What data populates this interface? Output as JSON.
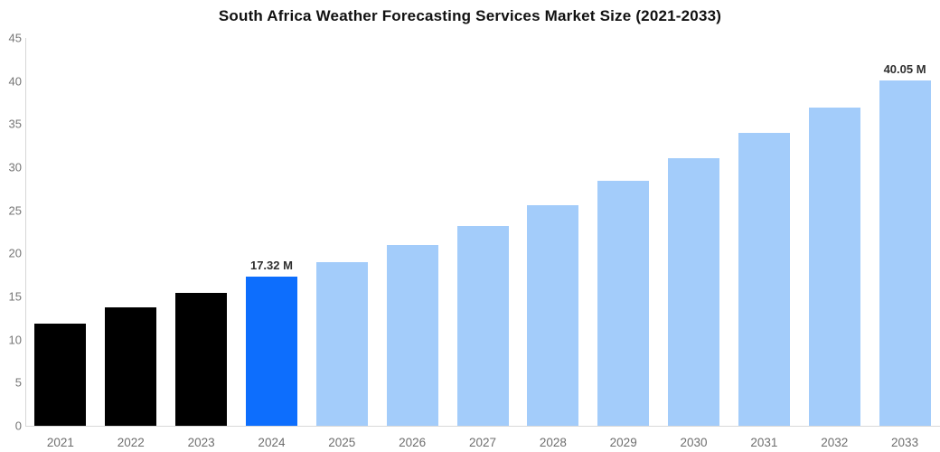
{
  "title": "South Africa Weather Forecasting Services Market Size (2021-2033)",
  "chart_data": {
    "type": "bar",
    "title": "South Africa Weather Forecasting Services Market Size (2021-2033)",
    "xlabel": "",
    "ylabel": "",
    "unit": "M",
    "categories": [
      "2021",
      "2022",
      "2023",
      "2024",
      "2025",
      "2026",
      "2027",
      "2028",
      "2029",
      "2030",
      "2031",
      "2032",
      "2033"
    ],
    "values": [
      11.9,
      13.7,
      15.4,
      17.32,
      19.0,
      21.0,
      23.2,
      25.6,
      28.4,
      31.1,
      34.0,
      36.9,
      40.05
    ],
    "bar_colors": [
      "#000000",
      "#000000",
      "#000000",
      "#0d6efd",
      "#a3ccfa",
      "#a3ccfa",
      "#a3ccfa",
      "#a3ccfa",
      "#a3ccfa",
      "#a3ccfa",
      "#a3ccfa",
      "#a3ccfa",
      "#a3ccfa"
    ],
    "ylim": [
      0,
      45
    ],
    "ytick_step": 5,
    "yticks": [
      "0",
      "5",
      "10",
      "15",
      "20",
      "25",
      "30",
      "35",
      "40",
      "45"
    ],
    "grid": false,
    "legend": false,
    "annotations": [
      {
        "category": "2024",
        "text": "17.32 M"
      },
      {
        "category": "2033",
        "text": "40.05 M"
      }
    ],
    "colors": {
      "historical_bar": "#000000",
      "highlight_bar": "#0d6efd",
      "forecast_bar": "#a3ccfa",
      "axis_text": "#6e6e6e",
      "axis_line": "#d6d6d6",
      "data_label_text": "#2f2f2f"
    }
  }
}
